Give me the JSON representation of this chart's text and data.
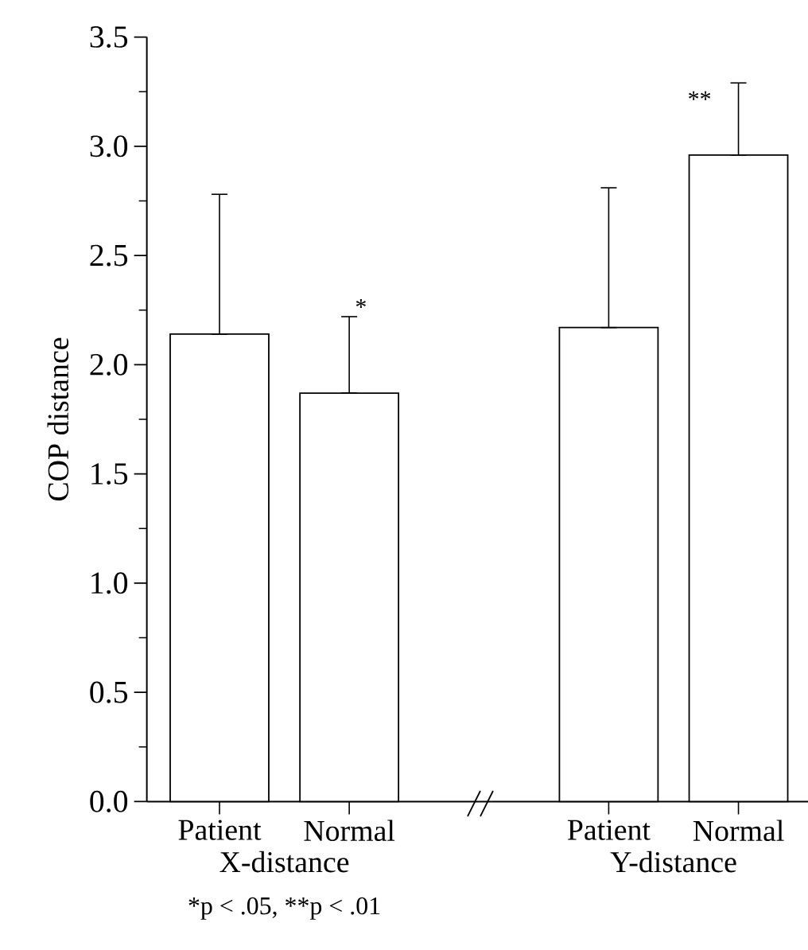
{
  "chart_data": {
    "type": "bar",
    "ylabel": "COP distance",
    "categories": [
      "Patient",
      "Normal",
      null,
      "Patient",
      "Normal"
    ],
    "values": [
      2.14,
      1.87,
      null,
      2.17,
      2.96
    ],
    "errors": [
      [
        2.14,
        2.78
      ],
      [
        1.87,
        2.22
      ],
      null,
      [
        2.17,
        2.81
      ],
      [
        2.96,
        3.29
      ]
    ],
    "color": "#000000",
    "ylim": [
      0,
      3.5
    ],
    "yticks": [
      {
        "value": 0,
        "label": "0.0"
      },
      {
        "value": 0.5,
        "label": "0.5"
      },
      {
        "value": 1,
        "label": "1.0"
      },
      {
        "value": 1.5,
        "label": "1.5"
      },
      {
        "value": 2,
        "label": "2.0"
      },
      {
        "value": 2.5,
        "label": "2.5"
      },
      {
        "value": 3,
        "label": "3.0"
      },
      {
        "value": 3.5,
        "label": "3.5"
      }
    ],
    "annotations": [
      "*",
      "**",
      "X-distance",
      "Y-distance",
      "*p < .05, **p < .01"
    ]
  }
}
